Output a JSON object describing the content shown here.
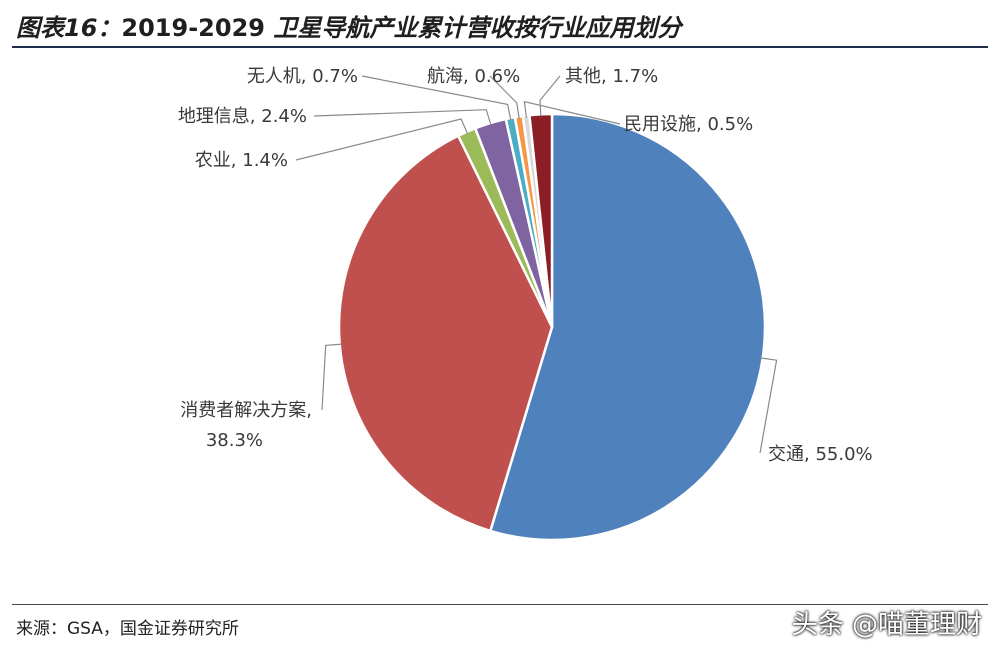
{
  "header": {
    "prefix": "图表16：",
    "years": "2019-2029",
    "title_text": "卫星导航产业累计营收按行业应用划分"
  },
  "footer": {
    "source": "来源：GSA，国金证券研究所",
    "watermark": "头条 @喵董理财"
  },
  "chart_data": {
    "type": "pie",
    "title": "图表16：2019-2029 卫星导航产业累计营收按行业应用划分",
    "start_angle_deg": 0,
    "direction": "clockwise",
    "slices": [
      {
        "name": "交通",
        "value": 55.0,
        "label": "交通, 55.0%",
        "color": "#4f81bd"
      },
      {
        "name": "消费者解决方案",
        "value": 38.3,
        "label_line1": "消费者解决方案,",
        "label_line2": "38.3%",
        "color": "#c0504d"
      },
      {
        "name": "农业",
        "value": 1.4,
        "label": "农业, 1.4%",
        "color": "#9bbb59"
      },
      {
        "name": "地理信息",
        "value": 2.4,
        "label": "地理信息, 2.4%",
        "color": "#8064a2"
      },
      {
        "name": "无人机",
        "value": 0.7,
        "label": "无人机, 0.7%",
        "color": "#4bacc6"
      },
      {
        "name": "航海",
        "value": 0.6,
        "label": "航海, 0.6%",
        "color": "#f79646"
      },
      {
        "name": "民用设施",
        "value": 0.5,
        "label": "民用设施, 0.5%",
        "color": "#d9d9d9"
      },
      {
        "name": "其他",
        "value": 1.7,
        "label": "其他, 1.7%",
        "color": "#8b1e24"
      }
    ]
  }
}
